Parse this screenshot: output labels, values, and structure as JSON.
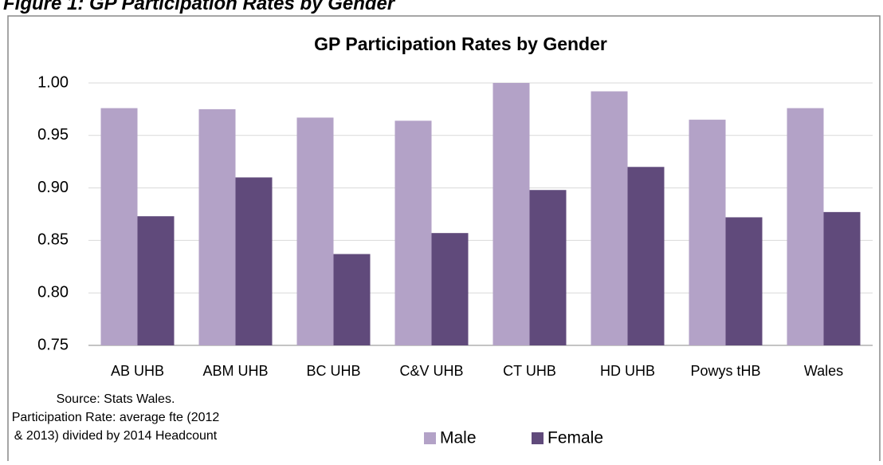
{
  "caption": "Figure 1: GP Participation Rates by Gender",
  "chart_data": {
    "type": "bar",
    "title": "GP Participation Rates by Gender",
    "categories": [
      "AB UHB",
      "ABM UHB",
      "BC UHB",
      "C&V UHB",
      "CT UHB",
      "HD UHB",
      "Powys tHB",
      "Wales"
    ],
    "series": [
      {
        "name": "Male",
        "color": "#b3a2c7",
        "values": [
          0.976,
          0.975,
          0.967,
          0.964,
          1.0,
          0.992,
          0.965,
          0.976
        ]
      },
      {
        "name": "Female",
        "color": "#604a7b",
        "values": [
          0.873,
          0.91,
          0.837,
          0.857,
          0.898,
          0.92,
          0.872,
          0.877
        ]
      }
    ],
    "ylim": [
      0.75,
      1.0
    ],
    "yticks": [
      0.75,
      {
        "value": 0.8,
        "label": "0.80"
      },
      0.85,
      {
        "value": 0.9,
        "label": "0.90"
      },
      0.95,
      {
        "value": 1.0,
        "label": "1.00"
      }
    ],
    "grid": true,
    "legend": "bottom",
    "note": [
      "Source: Stats Wales.",
      "Participation Rate: average fte (2012",
      "& 2013) divided by 2014 Headcount"
    ]
  }
}
